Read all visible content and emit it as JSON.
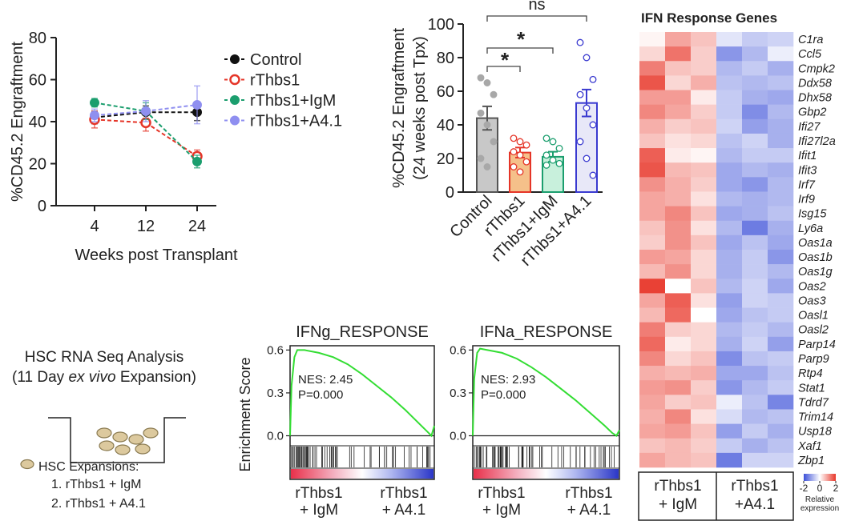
{
  "chart_data": [
    {
      "type": "line",
      "xlabel": "Weeks post Transplant",
      "ylabel": "%CD45.2 Engraftment",
      "categories": [
        "4",
        "12",
        "24"
      ],
      "ylim": [
        0,
        80
      ],
      "yticks": [
        0,
        20,
        40,
        60,
        80
      ],
      "series": [
        {
          "name": "Control",
          "color": "#111111",
          "values": [
            42,
            44.5,
            44.5
          ],
          "errors": [
            3,
            3,
            4
          ]
        },
        {
          "name": "rThbs1",
          "color": "#e53528",
          "values": [
            41,
            39.5,
            23.5
          ],
          "errors": [
            4,
            4,
            3
          ]
        },
        {
          "name": "rThbs1+IgM",
          "color": "#1b9e6e",
          "values": [
            49,
            45,
            21
          ],
          "errors": [
            2,
            4,
            3
          ]
        },
        {
          "name": "rThbs1+A4.1",
          "color": "#8f8ff0",
          "values": [
            43,
            45,
            48
          ],
          "errors": [
            3,
            5,
            9
          ]
        }
      ],
      "legend": "right"
    },
    {
      "type": "bar",
      "ylabel": [
        "%CD45.2 Engraftment",
        "(24 weeks post Tpx)"
      ],
      "categories": [
        "Control",
        "rThbs1",
        "rThbs1+IgM",
        "rThbs1+A4.1"
      ],
      "values": [
        44,
        23.5,
        21,
        53
      ],
      "errors": [
        7,
        3,
        3,
        8
      ],
      "points": [
        [
          68,
          65,
          58,
          47,
          40,
          30,
          20,
          15
        ],
        [
          32,
          30,
          28,
          24,
          22,
          18,
          15,
          12
        ],
        [
          32,
          30,
          26,
          22,
          19,
          17,
          16
        ],
        [
          89,
          80,
          67,
          58,
          50,
          40,
          30,
          20,
          10
        ]
      ],
      "colors": [
        "#c8c8c8",
        "#f5c08a",
        "#c8f0dc",
        "#e8e8f8"
      ],
      "edge_colors": [
        "#555555",
        "#e53528",
        "#1b9e6e",
        "#3a3ad0"
      ],
      "ylim": [
        0,
        100
      ],
      "yticks": [
        0,
        20,
        40,
        60,
        80,
        100
      ],
      "annotations": [
        "ns",
        "*",
        "*"
      ]
    },
    {
      "type": "gsea",
      "title": "IFNg_RESPONSE",
      "ylabel": "Enrichment Score",
      "x": [
        0,
        0.01,
        0.03,
        0.05,
        0.1,
        0.2,
        0.3,
        0.4,
        0.5,
        0.6,
        0.7,
        0.8,
        0.9,
        0.95,
        0.98,
        1
      ],
      "values": [
        0,
        0.35,
        0.55,
        0.6,
        0.6,
        0.58,
        0.55,
        0.5,
        0.43,
        0.35,
        0.27,
        0.18,
        0.08,
        0.03,
        0,
        0.07
      ],
      "color": "#33dd33",
      "xlim": [
        0,
        1
      ],
      "ylim": [
        -0.07,
        0.63
      ],
      "yticks": [
        {
          "value": 0,
          "label": "0.0"
        },
        0.3,
        0.6
      ],
      "annotations": [
        "NES: 2.45",
        "P=0.000"
      ],
      "group_labels": [
        [
          "rThbs1",
          "+ IgM"
        ],
        [
          "rThbs1",
          "+ A4.1"
        ]
      ],
      "group_colors": [
        "#e03030",
        "#4040c0"
      ]
    },
    {
      "type": "gsea",
      "title": "IFNa_RESPONSE",
      "x": [
        0,
        0.01,
        0.03,
        0.05,
        0.1,
        0.2,
        0.3,
        0.4,
        0.5,
        0.6,
        0.7,
        0.8,
        0.9,
        0.95,
        0.98,
        1
      ],
      "values": [
        0,
        0.4,
        0.58,
        0.61,
        0.6,
        0.58,
        0.54,
        0.48,
        0.41,
        0.33,
        0.25,
        0.16,
        0.07,
        0.02,
        0,
        0.04
      ],
      "color": "#33dd33",
      "xlim": [
        0,
        1
      ],
      "ylim": [
        -0.07,
        0.63
      ],
      "yticks": [
        {
          "value": 0,
          "label": "0.0"
        },
        0.3,
        0.6
      ],
      "annotations": [
        "NES: 2.93",
        "P=0.000"
      ],
      "group_labels": [
        [
          "rThbs1",
          "+ IgM"
        ],
        [
          "rThbs1",
          "+ A4.1"
        ]
      ],
      "group_colors": [
        "#e03030",
        "#4040c0"
      ]
    },
    {
      "type": "heatmap",
      "title": "IFN Response Genes",
      "rows": [
        "C1ra",
        "Ccl5",
        "Cmpk2",
        "Ddx58",
        "Dhx58",
        "Gbp2",
        "Ifi27",
        "Ifi27l2a",
        "Ifit1",
        "Ifit3",
        "Irf7",
        "Irf9",
        "Isg15",
        "Ly6a",
        "Oas1a",
        "Oas1b",
        "Oas1g",
        "Oas2",
        "Oas3",
        "Oasl1",
        "Oasl2",
        "Parp14",
        "Parp9",
        "Rtp4",
        "Stat1",
        "Tdrd7",
        "Trim14",
        "Usp18",
        "Xaf1",
        "Zbp1"
      ],
      "values": [
        [
          0.1,
          0.9,
          0.6,
          -0.3,
          -0.6,
          -0.5
        ],
        [
          0.4,
          1.4,
          0.5,
          -1.2,
          -0.8,
          -0.2
        ],
        [
          1.3,
          0.6,
          0.5,
          -0.8,
          -0.6,
          -0.9
        ],
        [
          1.7,
          0.4,
          0.8,
          -0.7,
          -0.8,
          -0.7
        ],
        [
          1.0,
          1.0,
          0.2,
          -0.6,
          -0.9,
          -1.0
        ],
        [
          1.2,
          0.9,
          0.5,
          -0.6,
          -1.3,
          -0.8
        ],
        [
          0.8,
          0.5,
          0.6,
          -0.5,
          -1.1,
          -0.9
        ],
        [
          0.6,
          0.3,
          0.4,
          -0.7,
          -0.5,
          -0.9
        ],
        [
          1.6,
          0.2,
          0.1,
          -0.8,
          -0.6,
          -0.6
        ],
        [
          1.7,
          0.7,
          0.6,
          -1.0,
          -0.8,
          -0.9
        ],
        [
          1.1,
          0.8,
          0.5,
          -1.0,
          -1.2,
          -0.8
        ],
        [
          0.9,
          0.8,
          0.3,
          -0.8,
          -0.9,
          -0.8
        ],
        [
          0.9,
          1.2,
          0.6,
          -1.0,
          -0.9,
          -0.7
        ],
        [
          0.6,
          1.1,
          0.3,
          -0.8,
          -1.5,
          -0.9
        ],
        [
          0.5,
          1.1,
          0.6,
          -1.0,
          -0.7,
          -1.0
        ],
        [
          1.0,
          0.9,
          0.4,
          -0.9,
          -0.6,
          -1.2
        ],
        [
          0.7,
          1.1,
          0.4,
          -0.9,
          -0.6,
          -0.8
        ],
        [
          1.9,
          0.0,
          0.6,
          -0.8,
          -0.5,
          -1.0
        ],
        [
          0.9,
          1.6,
          0.3,
          -1.1,
          -0.5,
          -0.6
        ],
        [
          0.7,
          1.5,
          0.0,
          -1.0,
          -0.7,
          -0.6
        ],
        [
          1.3,
          0.5,
          0.4,
          -0.8,
          -0.6,
          -0.8
        ],
        [
          1.5,
          0.2,
          0.4,
          -0.9,
          -0.5,
          -1.1
        ],
        [
          1.2,
          0.4,
          0.6,
          -1.3,
          -0.7,
          -0.6
        ],
        [
          0.8,
          0.7,
          0.8,
          -1.0,
          -1.0,
          -0.7
        ],
        [
          1.0,
          1.1,
          0.5,
          -1.2,
          -0.8,
          -0.6
        ],
        [
          0.9,
          0.5,
          0.6,
          -0.2,
          -0.7,
          -1.4
        ],
        [
          0.8,
          1.2,
          0.3,
          -0.4,
          -0.8,
          -0.7
        ],
        [
          0.9,
          1.0,
          0.6,
          -1.1,
          -0.6,
          -0.9
        ],
        [
          0.6,
          0.7,
          0.5,
          -0.6,
          -0.9,
          -0.7
        ],
        [
          0.9,
          0.7,
          0.6,
          -1.5,
          -0.5,
          -0.5
        ]
      ],
      "clim": [
        -2,
        2
      ],
      "cticks": [
        -2,
        0,
        2
      ],
      "colorbar_label": [
        "Relative",
        "expression"
      ],
      "colors": {
        "low": "#3c50d8",
        "mid": "#ffffff",
        "high": "#e8372a"
      },
      "group_labels": [
        [
          "rThbs1",
          "+ IgM"
        ],
        [
          "rThbs1",
          "+A4.1"
        ]
      ]
    }
  ],
  "diagram": {
    "title": "HSC RNA Seq Analysis",
    "subtitle": [
      "(11 Day ",
      "ex vivo",
      " Expansion)"
    ],
    "legend_title": "HSC Expansions:",
    "items": [
      "1. rThbs1 + IgM",
      "2. rThbs1 + A4.1"
    ]
  }
}
